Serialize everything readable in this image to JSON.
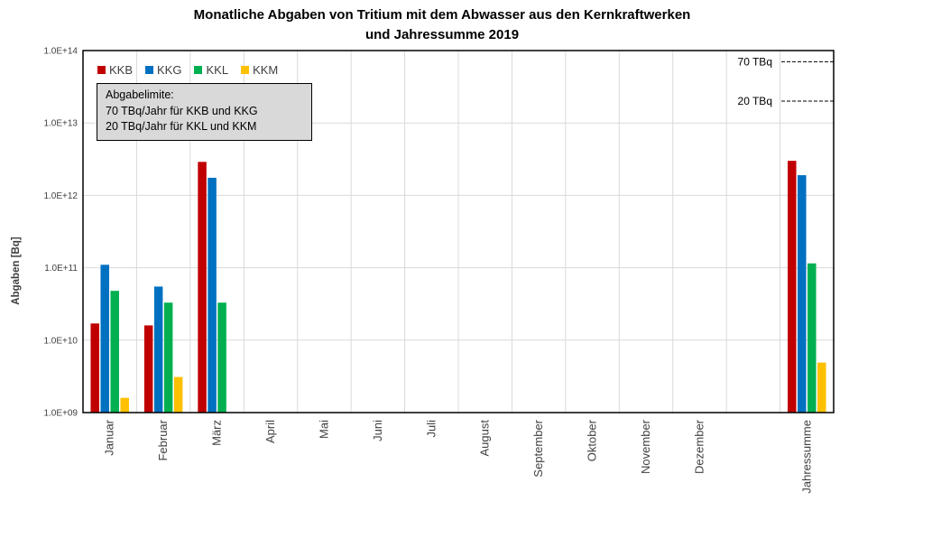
{
  "title_line1": "Monatliche Abgaben von Tritium mit dem Abwasser aus den Kernkraftwerken",
  "title_line2": "und Jahressumme 2019",
  "ylabel": "Abgaben [Bq]",
  "limits": {
    "line1": "Abgabelimite:",
    "line2": "70 TBq/Jahr für KKB und KKG",
    "line3": "20 TBq/Jahr für KKL und KKM",
    "label_70": "70 TBq",
    "label_20": "20 TBq",
    "value_70": 70000000000000.0,
    "value_20": 20000000000000.0
  },
  "chart_data": {
    "type": "bar",
    "title": "Monatliche Abgaben von Tritium mit dem Abwasser aus den Kernkraftwerken und Jahressumme 2019",
    "xlabel": "",
    "ylabel": "Abgaben [Bq]",
    "y_scale": "log",
    "ylim": [
      1000000000.0,
      100000000000000.0
    ],
    "y_tick_labels": [
      "1.0E+09",
      "1.0E+10",
      "1.0E+11",
      "1.0E+12",
      "1.0E+13",
      "1.0E+14"
    ],
    "grid": true,
    "legend_position": "top-left",
    "categories": [
      "Januar",
      "Februar",
      "März",
      "April",
      "Mai",
      "Juni",
      "Juli",
      "August",
      "September",
      "Oktober",
      "November",
      "Dezember",
      "Jahressumme"
    ],
    "series": [
      {
        "name": "KKB",
        "color": "#c00000",
        "values": [
          17000000000.0,
          16000000000.0,
          2900000000000.0,
          null,
          null,
          null,
          null,
          null,
          null,
          null,
          null,
          null,
          3000000000000.0
        ]
      },
      {
        "name": "KKG",
        "color": "#0070c0",
        "values": [
          110000000000.0,
          55000000000.0,
          1750000000000.0,
          null,
          null,
          null,
          null,
          null,
          null,
          null,
          null,
          null,
          1900000000000.0
        ]
      },
      {
        "name": "KKL",
        "color": "#00b050",
        "values": [
          48000000000.0,
          33000000000.0,
          33000000000.0,
          null,
          null,
          null,
          null,
          null,
          null,
          null,
          null,
          null,
          115000000000.0
        ]
      },
      {
        "name": "KKM",
        "color": "#ffc000",
        "values": [
          1600000000.0,
          3100000000.0,
          null,
          null,
          null,
          null,
          null,
          null,
          null,
          null,
          null,
          null,
          4900000000.0
        ]
      }
    ]
  }
}
